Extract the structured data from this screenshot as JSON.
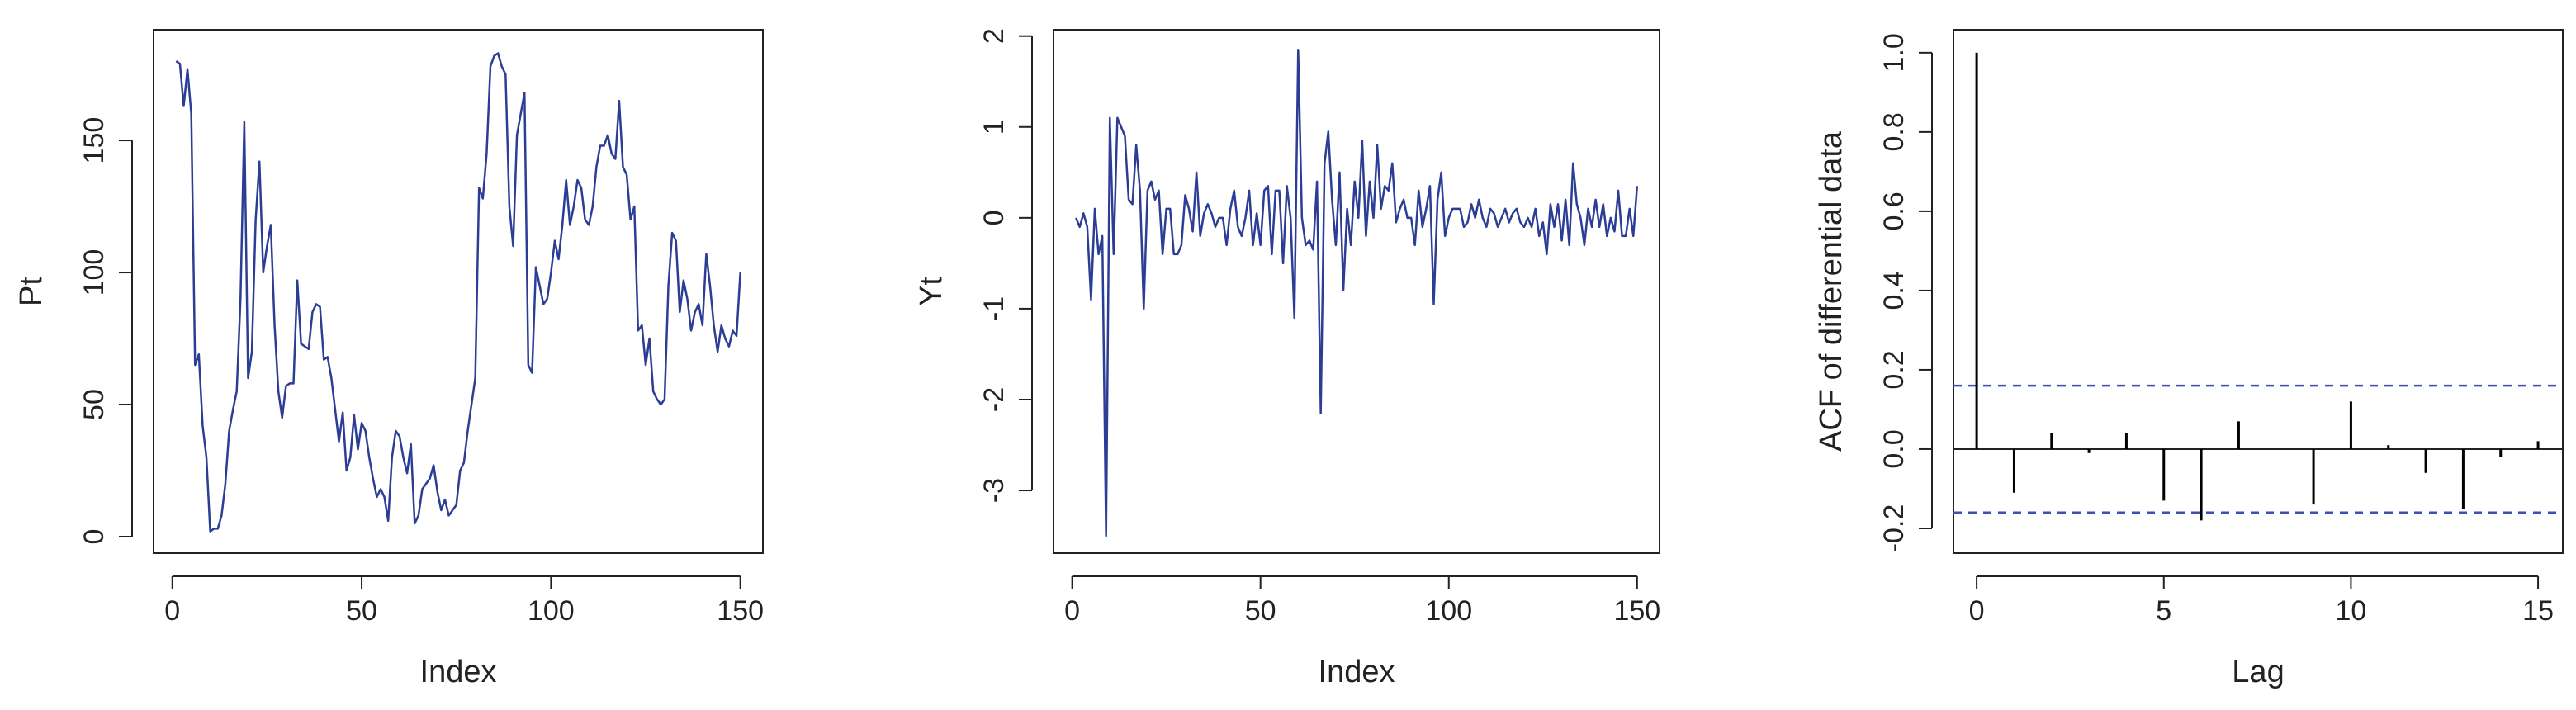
{
  "chart_data": [
    {
      "type": "line",
      "xlabel": "Index",
      "ylabel": "Pt",
      "color": "#2b3d94",
      "xlim": [
        -4.96,
        155.96
      ],
      "ylim": [
        -6.25,
        191.9
      ],
      "xticks": [
        0,
        50,
        100,
        150
      ],
      "yticks": [
        0,
        50,
        100,
        150
      ],
      "x": [
        1,
        2,
        3,
        4,
        5,
        6,
        7,
        8,
        9,
        10,
        11,
        12,
        13,
        14,
        15,
        16,
        17,
        18,
        19,
        20,
        21,
        22,
        23,
        24,
        25,
        26,
        27,
        28,
        29,
        30,
        31,
        32,
        33,
        34,
        35,
        36,
        37,
        38,
        39,
        40,
        41,
        42,
        43,
        44,
        45,
        46,
        47,
        48,
        49,
        50,
        51,
        52,
        53,
        54,
        55,
        56,
        57,
        58,
        59,
        60,
        61,
        62,
        63,
        64,
        65,
        66,
        67,
        68,
        69,
        70,
        71,
        72,
        73,
        74,
        75,
        76,
        77,
        78,
        79,
        80,
        81,
        82,
        83,
        84,
        85,
        86,
        87,
        88,
        89,
        90,
        91,
        92,
        93,
        94,
        95,
        96,
        97,
        98,
        99,
        100,
        101,
        102,
        103,
        104,
        105,
        106,
        107,
        108,
        109,
        110,
        111,
        112,
        113,
        114,
        115,
        116,
        117,
        118,
        119,
        120,
        121,
        122,
        123,
        124,
        125,
        126,
        127,
        128,
        129,
        130,
        131,
        132,
        133,
        134,
        135,
        136,
        137,
        138,
        139,
        140,
        141,
        142,
        143,
        144,
        145,
        146,
        147,
        148,
        149,
        150
      ],
      "values": [
        180,
        179,
        163,
        177,
        160,
        65,
        69,
        42,
        30,
        2,
        3,
        3,
        8,
        20,
        40,
        48,
        55,
        90,
        157,
        60,
        70,
        120,
        142,
        100,
        110,
        118,
        80,
        55,
        45,
        57,
        58,
        58,
        97,
        73,
        72,
        71,
        85,
        88,
        87,
        67,
        68,
        60,
        48,
        36,
        47,
        25,
        30,
        46,
        33,
        43,
        40,
        30,
        22,
        15,
        18,
        15,
        6,
        30,
        40,
        38,
        30,
        24,
        35,
        5,
        8,
        18,
        20,
        22,
        27,
        17,
        10,
        14,
        8,
        10,
        12,
        25,
        28,
        40,
        50,
        60,
        132,
        128,
        145,
        178,
        182,
        183,
        178,
        175,
        125,
        110,
        152,
        160,
        168,
        65,
        62,
        102,
        95,
        88,
        90,
        100,
        112,
        105,
        118,
        135,
        118,
        125,
        135,
        132,
        120,
        118,
        125,
        140,
        148,
        148,
        152,
        145,
        143,
        165,
        140,
        137,
        120,
        125,
        78,
        80,
        65,
        75,
        55,
        52,
        50,
        52,
        95,
        115,
        112,
        85,
        97,
        90,
        78,
        85,
        88,
        80,
        107,
        95,
        80,
        70,
        80,
        75,
        72,
        78,
        76,
        100
      ]
    },
    {
      "type": "line",
      "xlabel": "Index",
      "ylabel": "Yt",
      "color": "#2b3d94",
      "xlim": [
        -4.96,
        155.96
      ],
      "ylim": [
        -3.69,
        2.07
      ],
      "xticks": [
        0,
        50,
        100,
        150
      ],
      "yticks": [
        -3,
        -2,
        -1,
        0,
        1,
        2
      ],
      "x": [
        1,
        2,
        3,
        4,
        5,
        6,
        7,
        8,
        9,
        10,
        11,
        12,
        13,
        14,
        15,
        16,
        17,
        18,
        19,
        20,
        21,
        22,
        23,
        24,
        25,
        26,
        27,
        28,
        29,
        30,
        31,
        32,
        33,
        34,
        35,
        36,
        37,
        38,
        39,
        40,
        41,
        42,
        43,
        44,
        45,
        46,
        47,
        48,
        49,
        50,
        51,
        52,
        53,
        54,
        55,
        56,
        57,
        58,
        59,
        60,
        61,
        62,
        63,
        64,
        65,
        66,
        67,
        68,
        69,
        70,
        71,
        72,
        73,
        74,
        75,
        76,
        77,
        78,
        79,
        80,
        81,
        82,
        83,
        84,
        85,
        86,
        87,
        88,
        89,
        90,
        91,
        92,
        93,
        94,
        95,
        96,
        97,
        98,
        99,
        100,
        101,
        102,
        103,
        104,
        105,
        106,
        107,
        108,
        109,
        110,
        111,
        112,
        113,
        114,
        115,
        116,
        117,
        118,
        119,
        120,
        121,
        122,
        123,
        124,
        125,
        126,
        127,
        128,
        129,
        130,
        131,
        132,
        133,
        134,
        135,
        136,
        137,
        138,
        139,
        140,
        141,
        142,
        143,
        144,
        145,
        146,
        147,
        148,
        149,
        150
      ],
      "values": [
        0,
        -0.1,
        0.05,
        -0.1,
        -0.9,
        0.1,
        -0.4,
        -0.2,
        -3.5,
        1.1,
        -0.4,
        1.1,
        1.0,
        0.9,
        0.2,
        0.15,
        0.8,
        0.3,
        -1.0,
        0.3,
        0.4,
        0.2,
        0.3,
        -0.4,
        0.1,
        0.1,
        -0.4,
        -0.4,
        -0.3,
        0.25,
        0.1,
        -0.15,
        0.5,
        -0.2,
        0.05,
        0.15,
        0.05,
        -0.1,
        0.0,
        0.0,
        -0.3,
        0.1,
        0.3,
        -0.1,
        -0.2,
        0.0,
        0.3,
        -0.3,
        0.05,
        -0.3,
        0.3,
        0.35,
        -0.4,
        0.3,
        0.3,
        -0.5,
        0.35,
        0.0,
        -1.1,
        1.85,
        0.0,
        -0.3,
        -0.25,
        -0.35,
        0.4,
        -2.15,
        0.6,
        0.95,
        0.2,
        -0.3,
        0.5,
        -0.8,
        0.1,
        -0.3,
        0.4,
        0.0,
        0.85,
        -0.2,
        0.4,
        0.0,
        0.8,
        0.1,
        0.35,
        0.3,
        0.6,
        -0.05,
        0.1,
        0.2,
        0.0,
        0.0,
        -0.3,
        0.3,
        -0.1,
        0.1,
        0.35,
        -0.95,
        0.2,
        0.5,
        -0.2,
        0.0,
        0.1,
        0.1,
        0.1,
        -0.1,
        -0.05,
        0.15,
        0.0,
        0.2,
        0.0,
        -0.1,
        0.1,
        0.05,
        -0.1,
        0.0,
        0.1,
        -0.05,
        0.05,
        0.1,
        -0.05,
        -0.1,
        0.0,
        -0.1,
        0.1,
        -0.2,
        -0.05,
        -0.4,
        0.15,
        -0.1,
        0.15,
        -0.25,
        0.2,
        -0.3,
        0.6,
        0.15,
        0.0,
        -0.3,
        0.1,
        -0.1,
        0.2,
        -0.1,
        0.15,
        -0.2,
        0.0,
        -0.15,
        0.3,
        -0.2,
        -0.2,
        0.1,
        -0.2,
        0.35
      ]
    },
    {
      "type": "bar",
      "xlabel": "Lag",
      "ylabel": "ACF of differential data",
      "color": "#000000",
      "xlim": [
        -0.62,
        15.66
      ],
      "ylim": [
        -0.2625,
        1.058
      ],
      "xticks": [
        0,
        5,
        10,
        15
      ],
      "yticks": [
        -0.2,
        {
          "value": 0,
          "label": "0.0"
        },
        0.2,
        0.4,
        0.6,
        0.8,
        {
          "value": 1,
          "label": "1.0"
        }
      ],
      "x": [
        0,
        1,
        2,
        3,
        4,
        5,
        6,
        7,
        8,
        9,
        10,
        11,
        12,
        13,
        14,
        15
      ],
      "values": [
        1.0,
        -0.11,
        0.04,
        -0.01,
        0.04,
        -0.13,
        -0.18,
        0.07,
        0.0,
        -0.14,
        0.12,
        0.01,
        -0.06,
        -0.15,
        -0.02,
        0.02
      ],
      "hlines": [
        0.16,
        -0.16
      ],
      "hline_color": "#3b50b0"
    }
  ]
}
